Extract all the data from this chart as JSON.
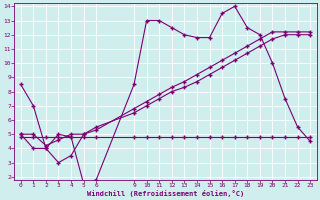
{
  "series1_x": [
    0,
    1,
    2,
    3,
    4,
    5,
    6,
    9,
    10,
    11,
    12,
    13,
    14,
    15,
    16,
    17,
    18,
    19,
    20,
    21,
    22,
    23
  ],
  "series1_y": [
    8.5,
    7.0,
    4.0,
    5.0,
    4.8,
    1.5,
    1.8,
    8.5,
    13.0,
    13.0,
    12.5,
    12.0,
    11.8,
    11.8,
    13.5,
    14.0,
    12.5,
    12.0,
    10.0,
    7.5,
    5.5,
    4.5
  ],
  "series2_x": [
    0,
    1,
    2,
    3,
    4,
    5,
    6,
    9,
    10,
    11,
    12,
    13,
    14,
    15,
    16,
    17,
    18,
    19,
    20,
    21,
    22,
    23
  ],
  "series2_y": [
    4.8,
    4.8,
    4.8,
    4.8,
    4.8,
    4.8,
    4.8,
    4.8,
    4.8,
    4.8,
    4.8,
    4.8,
    4.8,
    4.8,
    4.8,
    4.8,
    4.8,
    4.8,
    4.8,
    4.8,
    4.8,
    4.8
  ],
  "series3_x": [
    0,
    1,
    2,
    3,
    4,
    5,
    6,
    9,
    10,
    11,
    12,
    13,
    14,
    15,
    16,
    17,
    18,
    19,
    20,
    21,
    22,
    23
  ],
  "series3_y": [
    5.0,
    4.0,
    4.0,
    3.0,
    3.5,
    5.0,
    5.5,
    6.5,
    7.0,
    7.5,
    8.0,
    8.3,
    8.7,
    9.2,
    9.7,
    10.2,
    10.7,
    11.2,
    11.7,
    12.0,
    12.0,
    12.0
  ],
  "series4_x": [
    0,
    1,
    2,
    3,
    4,
    5,
    6,
    9,
    10,
    11,
    12,
    13,
    14,
    15,
    16,
    17,
    18,
    19,
    20,
    21,
    22,
    23
  ],
  "series4_y": [
    5.0,
    5.0,
    4.2,
    4.6,
    5.0,
    5.0,
    5.3,
    6.8,
    7.3,
    7.8,
    8.3,
    8.7,
    9.2,
    9.7,
    10.2,
    10.7,
    11.2,
    11.7,
    12.2,
    12.2,
    12.2,
    12.2
  ],
  "line_color": "#7b0072",
  "bg_color": "#d1eeee",
  "grid_color": "#b8dede",
  "xlabel": "Windchill (Refroidissement éolien,°C)",
  "ylim": [
    2,
    14
  ],
  "yticks": [
    2,
    3,
    4,
    5,
    6,
    7,
    8,
    9,
    10,
    11,
    12,
    13,
    14
  ],
  "xticks": [
    0,
    1,
    2,
    3,
    4,
    5,
    6,
    9,
    10,
    11,
    12,
    13,
    14,
    15,
    16,
    17,
    18,
    19,
    20,
    21,
    22,
    23
  ],
  "title_color": "#7b0072"
}
